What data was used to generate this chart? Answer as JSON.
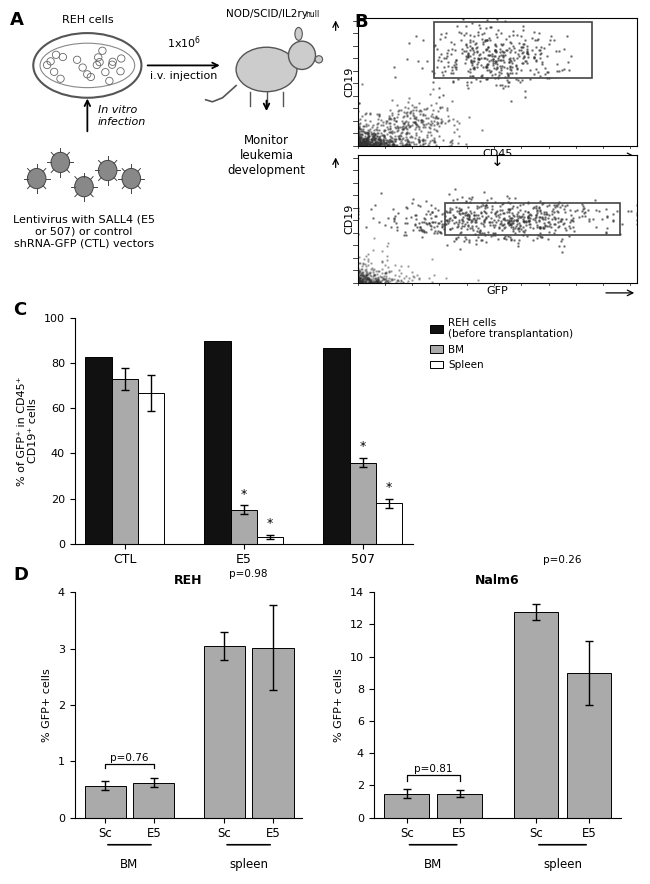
{
  "panel_C": {
    "groups": [
      "CTL",
      "E5",
      "507"
    ],
    "REH_values": [
      83,
      90,
      87
    ],
    "BM_values": [
      73,
      15,
      36
    ],
    "Spleen_values": [
      67,
      3,
      18
    ],
    "BM_errors": [
      5,
      2,
      2
    ],
    "Spleen_errors": [
      8,
      1,
      2
    ],
    "REH_color": "#111111",
    "BM_color": "#aaaaaa",
    "Spleen_color": "#ffffff",
    "ylabel": "% of GFP⁺ in CD45⁺\nCD19⁺ cells",
    "ylim": [
      0,
      100
    ],
    "yticks": [
      0,
      20,
      40,
      60,
      80,
      100
    ],
    "star_BM": [
      false,
      true,
      true
    ],
    "star_Spleen": [
      false,
      true,
      true
    ]
  },
  "panel_D_REH": {
    "categories": [
      "Sc",
      "E5",
      "Sc",
      "E5"
    ],
    "values": [
      0.57,
      0.62,
      3.05,
      3.02
    ],
    "errors": [
      0.08,
      0.08,
      0.25,
      0.75
    ],
    "bar_color": "#aaaaaa",
    "ylabel": "% GFP+ cells",
    "ylim": [
      0,
      4
    ],
    "yticks": [
      0,
      1,
      2,
      3,
      4
    ],
    "title": "REH",
    "group_labels": [
      "BM",
      "spleen"
    ],
    "pval_BM": "p=0.76",
    "pval_spleen": "p=0.98"
  },
  "panel_D_Nalm6": {
    "categories": [
      "Sc",
      "E5",
      "Sc",
      "E5"
    ],
    "values": [
      1.5,
      1.5,
      12.8,
      9.0
    ],
    "errors": [
      0.3,
      0.2,
      0.5,
      2.0
    ],
    "bar_color": "#aaaaaa",
    "ylabel": "% GFP+ cells",
    "ylim": [
      0,
      14
    ],
    "yticks": [
      0,
      2,
      4,
      6,
      8,
      10,
      12,
      14
    ],
    "title": "Nalm6",
    "group_labels": [
      "BM",
      "spleen"
    ],
    "pval_BM": "p=0.81",
    "pval_spleen": "p=0.26"
  },
  "background_color": "#ffffff",
  "text_color": "#000000"
}
